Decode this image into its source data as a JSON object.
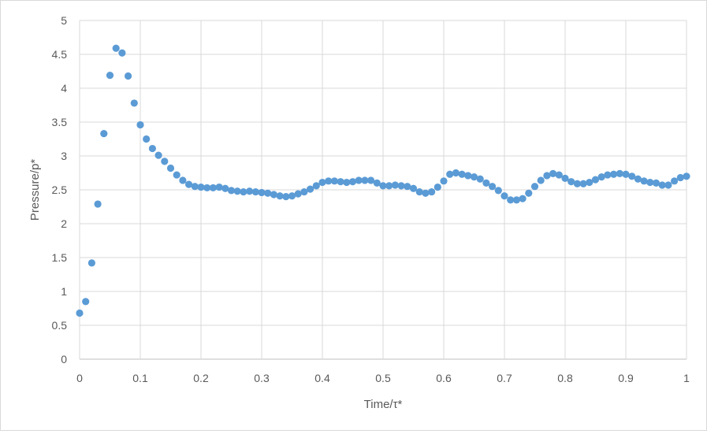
{
  "chart_data": {
    "type": "scatter",
    "title": "",
    "xlabel": "Time/τ*",
    "ylabel": "Pressure/p*",
    "xlim": [
      0,
      1
    ],
    "ylim": [
      0,
      5
    ],
    "grid": true,
    "legend": "none",
    "marker_color": "#5b9bd5",
    "x_ticks": [
      "0",
      "0.1",
      "0.2",
      "0.3",
      "0.4",
      "0.5",
      "0.6",
      "0.7",
      "0.8",
      "0.9",
      "1"
    ],
    "y_ticks": [
      "0",
      "0.5",
      "1",
      "1.5",
      "2",
      "2.5",
      "3",
      "3.5",
      "4",
      "4.5",
      "5"
    ],
    "x": [
      0.0,
      0.01,
      0.02,
      0.03,
      0.04,
      0.05,
      0.06,
      0.07,
      0.08,
      0.09,
      0.1,
      0.11,
      0.12,
      0.13,
      0.14,
      0.15,
      0.16,
      0.17,
      0.18,
      0.19,
      0.2,
      0.21,
      0.22,
      0.23,
      0.24,
      0.25,
      0.26,
      0.27,
      0.28,
      0.29,
      0.3,
      0.31,
      0.32,
      0.33,
      0.34,
      0.35,
      0.36,
      0.37,
      0.38,
      0.39,
      0.4,
      0.41,
      0.42,
      0.43,
      0.44,
      0.45,
      0.46,
      0.47,
      0.48,
      0.49,
      0.5,
      0.51,
      0.52,
      0.53,
      0.54,
      0.55,
      0.56,
      0.57,
      0.58,
      0.59,
      0.6,
      0.61,
      0.62,
      0.63,
      0.64,
      0.65,
      0.66,
      0.67,
      0.68,
      0.69,
      0.7,
      0.71,
      0.72,
      0.73,
      0.74,
      0.75,
      0.76,
      0.77,
      0.78,
      0.79,
      0.8,
      0.81,
      0.82,
      0.83,
      0.84,
      0.85,
      0.86,
      0.87,
      0.88,
      0.89,
      0.9,
      0.91,
      0.92,
      0.93,
      0.94,
      0.95,
      0.96,
      0.97,
      0.98,
      0.99,
      1.0
    ],
    "y": [
      0.68,
      0.85,
      1.42,
      2.29,
      3.33,
      4.19,
      4.59,
      4.52,
      4.18,
      3.78,
      3.46,
      3.25,
      3.11,
      3.01,
      2.92,
      2.82,
      2.72,
      2.64,
      2.58,
      2.55,
      2.54,
      2.53,
      2.53,
      2.54,
      2.52,
      2.49,
      2.48,
      2.47,
      2.48,
      2.47,
      2.46,
      2.45,
      2.43,
      2.41,
      2.4,
      2.41,
      2.44,
      2.47,
      2.51,
      2.56,
      2.61,
      2.63,
      2.63,
      2.62,
      2.61,
      2.62,
      2.64,
      2.64,
      2.64,
      2.6,
      2.56,
      2.56,
      2.57,
      2.56,
      2.55,
      2.52,
      2.47,
      2.45,
      2.47,
      2.54,
      2.63,
      2.73,
      2.75,
      2.73,
      2.71,
      2.69,
      2.66,
      2.6,
      2.55,
      2.49,
      2.41,
      2.35,
      2.35,
      2.37,
      2.45,
      2.55,
      2.64,
      2.71,
      2.74,
      2.72,
      2.67,
      2.62,
      2.59,
      2.59,
      2.61,
      2.65,
      2.69,
      2.72,
      2.73,
      2.74,
      2.73,
      2.7,
      2.66,
      2.63,
      2.61,
      2.6,
      2.57,
      2.57,
      2.63,
      2.68,
      2.7
    ]
  }
}
